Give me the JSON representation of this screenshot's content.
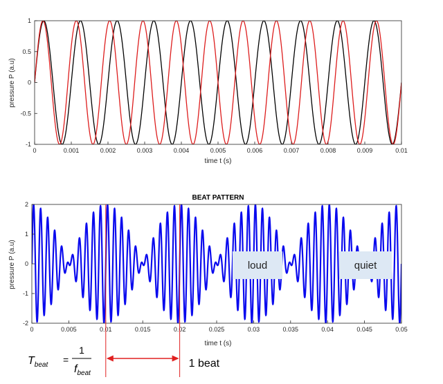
{
  "chart_data": [
    {
      "type": "line",
      "title": "",
      "xlabel": "time  t (s)",
      "ylabel": "pressure  P  (a.u)",
      "xlim": [
        0,
        0.01
      ],
      "ylim": [
        -1,
        1
      ],
      "x_ticks": [
        "0",
        "0.001",
        "0.002",
        "0.003",
        "0.004",
        "0.005",
        "0.006",
        "0.007",
        "0.008",
        "0.009",
        "0.01"
      ],
      "y_ticks": [
        "1",
        "0.5",
        "0",
        "-0.5",
        "-1"
      ],
      "grid": false,
      "series": [
        {
          "color": "#000000",
          "function": "sin(2*pi*f*t)",
          "frequency_hz": 1000
        },
        {
          "color": "#dd1c1c",
          "function": "sin(2*pi*f*t)",
          "frequency_hz": 1100
        }
      ]
    },
    {
      "type": "line",
      "title": "BEAT PATTERN",
      "xlabel": "time  t (s)",
      "ylabel": "pressure  P  (a.u)",
      "xlim": [
        0,
        0.05
      ],
      "ylim": [
        -2,
        2
      ],
      "x_ticks": [
        "0",
        "0.005",
        "0.01",
        "0.015",
        "0.02",
        "0.025",
        "0.03",
        "0.035",
        "0.04",
        "0.045",
        "0.05"
      ],
      "y_ticks": [
        "2",
        "1",
        "0",
        "-1",
        "-2"
      ],
      "grid": false,
      "series": [
        {
          "color": "#0a0aee",
          "function": "sin(2*pi*f1*t)+sin(2*pi*f2*t)",
          "frequencies_hz": [
            1000,
            1100
          ]
        }
      ],
      "annotations": [
        {
          "text": "loud",
          "x": 0.0305
        },
        {
          "text": "quiet",
          "x": 0.0445
        }
      ],
      "beat_marker": {
        "start": 0.01,
        "end": 0.02,
        "label": "1 beat",
        "color": "#e02020"
      },
      "formula": {
        "lhs": "T",
        "lhs_sub": "beat",
        "numerator": "1",
        "denominator": "f",
        "denominator_sub": "beat"
      }
    }
  ]
}
